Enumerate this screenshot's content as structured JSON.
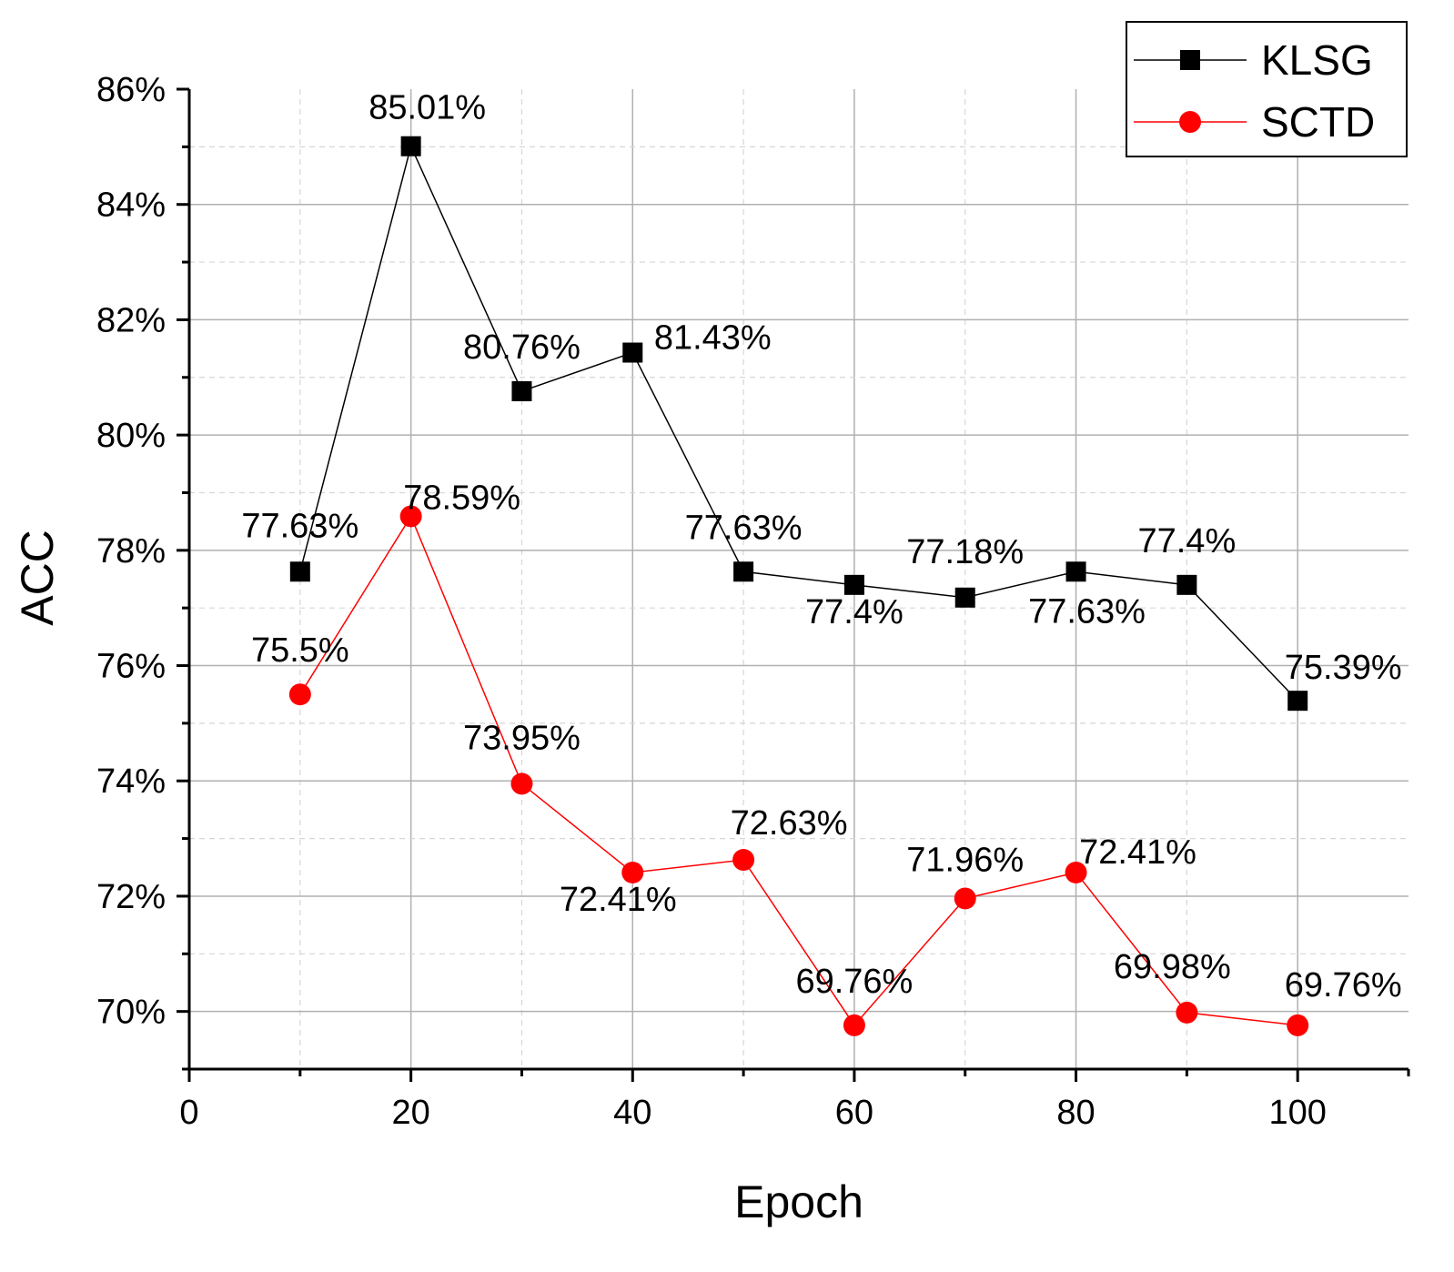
{
  "chart_data": {
    "type": "line",
    "title": "",
    "xlabel": "Epoch",
    "ylabel": "ACC",
    "xlim": [
      0,
      110
    ],
    "ylim": [
      69,
      86
    ],
    "x_ticks": [
      0,
      20,
      40,
      60,
      80,
      100
    ],
    "y_ticks": [
      70,
      72,
      74,
      76,
      78,
      80,
      82,
      84,
      86
    ],
    "y_tick_format": "percent",
    "grid": true,
    "legend_position": "top-right",
    "x": [
      10,
      20,
      30,
      40,
      50,
      60,
      70,
      80,
      90,
      100
    ],
    "series": [
      {
        "name": "KLSG",
        "color": "#000000",
        "marker": "square",
        "values": [
          77.63,
          85.01,
          80.76,
          81.43,
          77.63,
          77.4,
          77.18,
          77.63,
          77.4,
          75.39
        ],
        "labels": [
          "77.63%",
          "85.01%",
          "80.76%",
          "81.43%",
          "77.63%",
          "77.4%",
          "77.18%",
          "77.63%",
          "77.4%",
          "75.39%"
        ]
      },
      {
        "name": "SCTD",
        "color": "#ff0000",
        "marker": "circle",
        "values": [
          75.5,
          78.59,
          73.95,
          72.41,
          72.63,
          69.76,
          71.96,
          72.41,
          69.98,
          69.76
        ],
        "labels": [
          "75.5%",
          "78.59%",
          "73.95%",
          "72.41%",
          "72.63%",
          "69.76%",
          "71.96%",
          "72.41%",
          "69.98%",
          "69.76%"
        ]
      }
    ]
  }
}
